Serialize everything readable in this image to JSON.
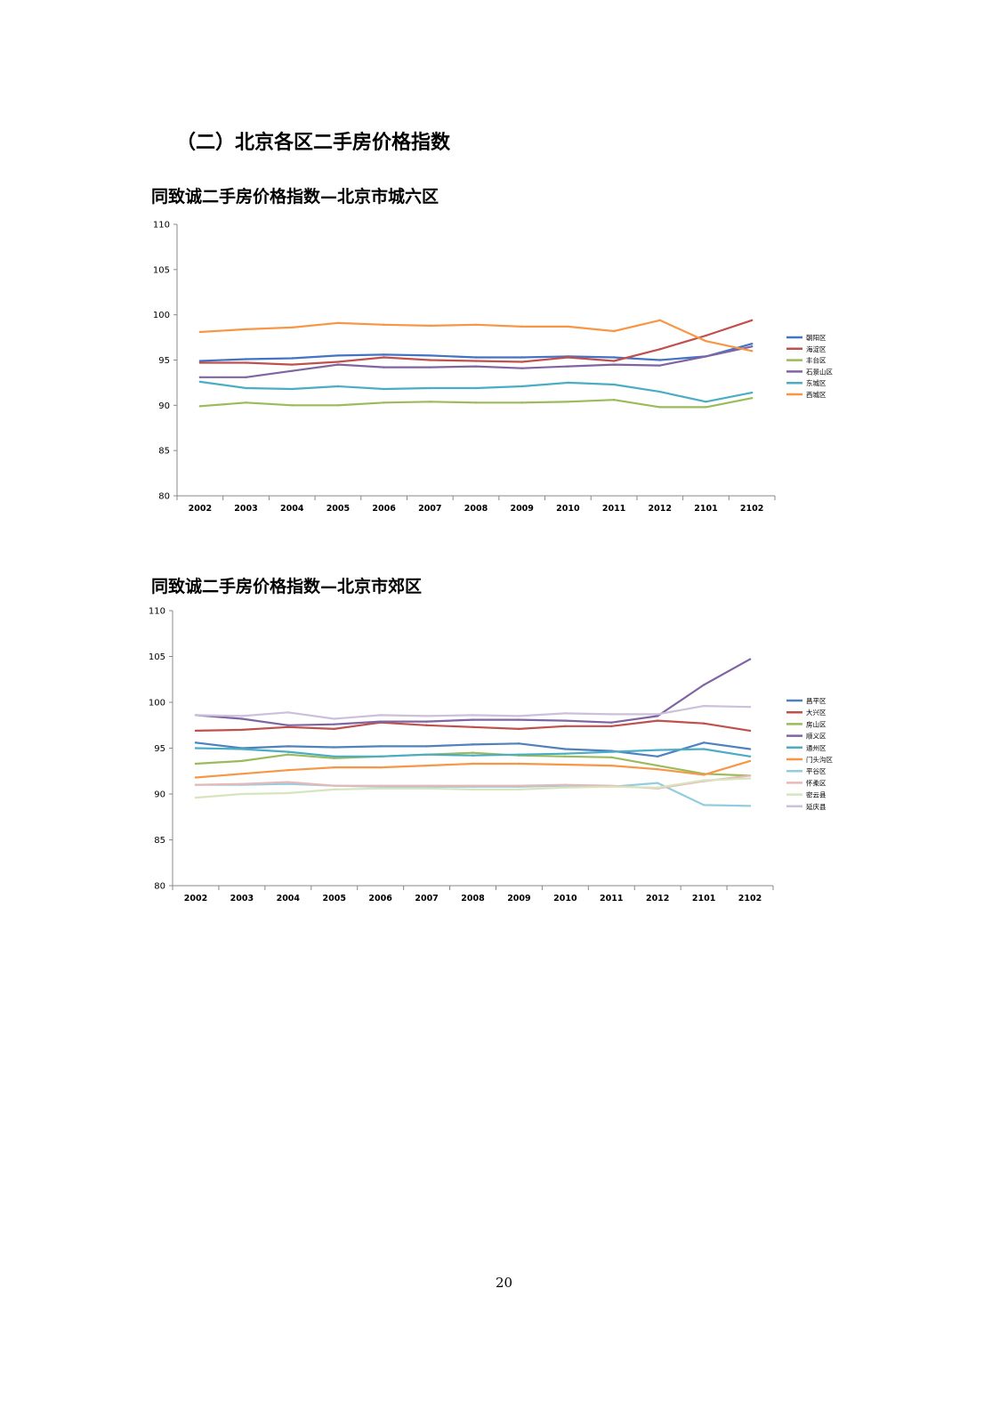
{
  "page": {
    "section_title": "（二）北京各区二手房价格指数",
    "page_number": "20"
  },
  "chart_data": [
    {
      "type": "line",
      "title": "同致诚二手房价格指数—北京市城六区",
      "xlabel": "",
      "ylabel": "",
      "categories": [
        "2002",
        "2003",
        "2004",
        "2005",
        "2006",
        "2007",
        "2008",
        "2009",
        "2010",
        "2011",
        "2012",
        "2101",
        "2102"
      ],
      "ylim": [
        80,
        110
      ],
      "yticks": [
        80,
        85,
        90,
        95,
        100,
        105,
        110
      ],
      "grid": false,
      "legend_position": "right",
      "series": [
        {
          "name": "朝阳区",
          "color": "#4472C4",
          "values": [
            94.9,
            95.1,
            95.2,
            95.5,
            95.6,
            95.5,
            95.3,
            95.3,
            95.4,
            95.3,
            95.0,
            95.4,
            96.8
          ]
        },
        {
          "name": "海淀区",
          "color": "#C0504D",
          "values": [
            94.7,
            94.7,
            94.5,
            94.8,
            95.3,
            95.0,
            94.9,
            94.8,
            95.3,
            94.9,
            96.2,
            97.7,
            99.4
          ]
        },
        {
          "name": "丰台区",
          "color": "#9BBB59",
          "values": [
            89.9,
            90.3,
            90.0,
            90.0,
            90.3,
            90.4,
            90.3,
            90.3,
            90.4,
            90.6,
            89.8,
            89.8,
            90.8
          ]
        },
        {
          "name": "石景山区",
          "color": "#8064A2",
          "values": [
            93.1,
            93.1,
            93.8,
            94.5,
            94.2,
            94.2,
            94.3,
            94.1,
            94.3,
            94.5,
            94.4,
            95.4,
            96.5
          ]
        },
        {
          "name": "东城区",
          "color": "#4BACC6",
          "values": [
            92.6,
            91.9,
            91.8,
            92.1,
            91.8,
            91.9,
            91.9,
            92.1,
            92.5,
            92.3,
            91.5,
            90.4,
            91.4
          ]
        },
        {
          "name": "西城区",
          "color": "#F79646",
          "values": [
            98.1,
            98.4,
            98.6,
            99.1,
            98.9,
            98.8,
            98.9,
            98.7,
            98.7,
            98.2,
            99.4,
            97.1,
            96.0
          ]
        }
      ]
    },
    {
      "type": "line",
      "title": "同致诚二手房价格指数—北京市郊区",
      "xlabel": "",
      "ylabel": "",
      "categories": [
        "2002",
        "2003",
        "2004",
        "2005",
        "2006",
        "2007",
        "2008",
        "2009",
        "2010",
        "2011",
        "2012",
        "2101",
        "2102"
      ],
      "ylim": [
        80,
        110
      ],
      "yticks": [
        80,
        85,
        90,
        95,
        100,
        105,
        110
      ],
      "grid": false,
      "legend_position": "right",
      "series": [
        {
          "name": "昌平区",
          "color": "#4F81BD",
          "values": [
            95.6,
            95.0,
            95.2,
            95.1,
            95.2,
            95.2,
            95.4,
            95.5,
            94.9,
            94.7,
            94.1,
            95.6,
            94.9
          ]
        },
        {
          "name": "大兴区",
          "color": "#C0504D",
          "values": [
            96.9,
            97.0,
            97.3,
            97.1,
            97.8,
            97.5,
            97.3,
            97.1,
            97.4,
            97.4,
            98.0,
            97.7,
            96.9
          ]
        },
        {
          "name": "房山区",
          "color": "#9BBB59",
          "values": [
            93.3,
            93.6,
            94.3,
            93.9,
            94.1,
            94.3,
            94.5,
            94.2,
            94.1,
            94.0,
            93.1,
            92.2,
            92.0
          ]
        },
        {
          "name": "顺义区",
          "color": "#8064A2",
          "values": [
            98.6,
            98.2,
            97.5,
            97.6,
            97.9,
            97.9,
            98.1,
            98.1,
            98.0,
            97.8,
            98.5,
            101.9,
            104.7
          ]
        },
        {
          "name": "通州区",
          "color": "#4BACC6",
          "values": [
            95.0,
            94.9,
            94.6,
            94.1,
            94.1,
            94.3,
            94.2,
            94.3,
            94.4,
            94.6,
            94.8,
            94.9,
            94.1
          ]
        },
        {
          "name": "门头沟区",
          "color": "#F79646",
          "values": [
            91.8,
            92.2,
            92.6,
            92.9,
            92.9,
            93.1,
            93.3,
            93.3,
            93.2,
            93.1,
            92.7,
            92.1,
            93.6
          ]
        },
        {
          "name": "平谷区",
          "color": "#93CDDD",
          "values": [
            91.0,
            91.0,
            91.1,
            90.9,
            90.8,
            90.8,
            90.8,
            90.8,
            90.9,
            90.8,
            91.2,
            88.8,
            88.7
          ]
        },
        {
          "name": "怀柔区",
          "color": "#E6B9B8",
          "values": [
            91.0,
            91.1,
            91.3,
            90.9,
            90.9,
            90.9,
            90.9,
            90.9,
            91.0,
            90.9,
            90.6,
            91.4,
            92.0
          ]
        },
        {
          "name": "密云县",
          "color": "#D7E4BD",
          "values": [
            89.6,
            90.0,
            90.1,
            90.5,
            90.6,
            90.6,
            90.5,
            90.5,
            90.7,
            90.8,
            90.7,
            91.5,
            91.7
          ]
        },
        {
          "name": "延庆县",
          "color": "#CCC0DA",
          "values": [
            98.6,
            98.5,
            98.9,
            98.2,
            98.6,
            98.5,
            98.6,
            98.5,
            98.8,
            98.7,
            98.7,
            99.6,
            99.5
          ]
        }
      ]
    }
  ]
}
